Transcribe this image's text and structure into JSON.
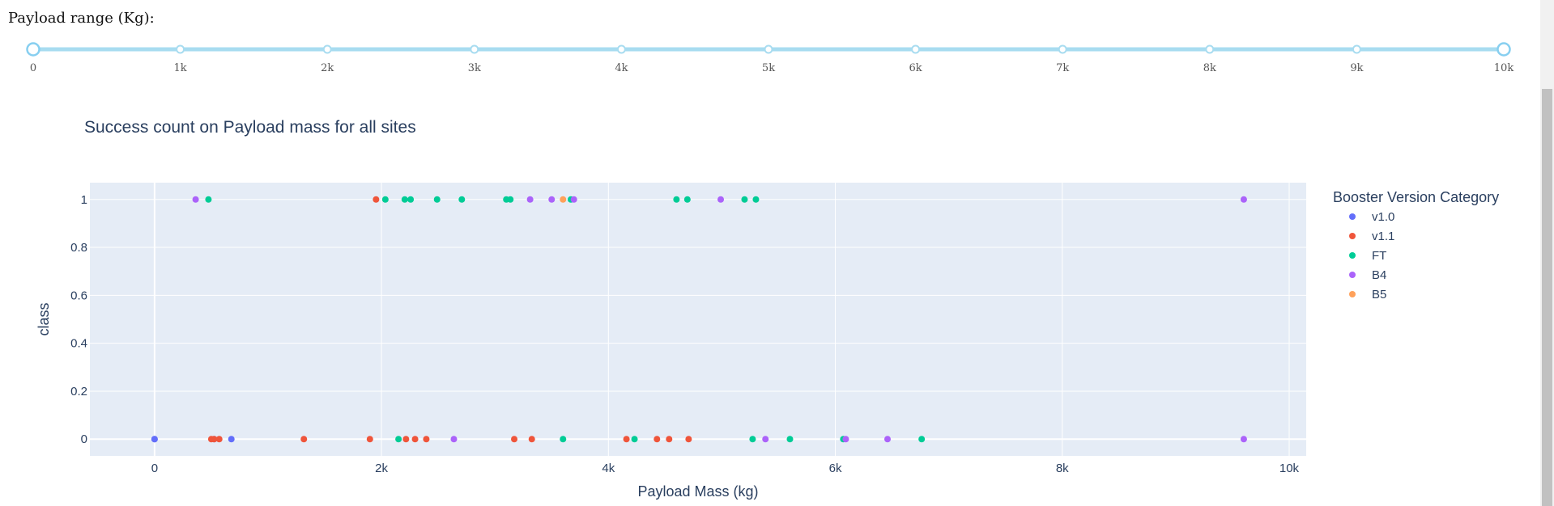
{
  "slider": {
    "label": "Payload range (Kg):",
    "min": 0,
    "max": 10000,
    "value": [
      0,
      10000
    ],
    "marks": [
      "0",
      "1k",
      "2k",
      "3k",
      "4k",
      "5k",
      "6k",
      "7k",
      "8k",
      "9k",
      "10k"
    ],
    "track_color": "#a8dcf0",
    "handle_color": "#87cff0"
  },
  "chart_data": {
    "type": "scatter",
    "title": "Success count on Payload mass for all sites",
    "xlabel": "Payload Mass (kg)",
    "ylabel": "class",
    "xlim": [
      -570,
      10150
    ],
    "ylim": [
      -0.07,
      1.07
    ],
    "x_ticks": [
      0,
      2000,
      4000,
      6000,
      8000,
      10000
    ],
    "x_tick_labels": [
      "0",
      "2k",
      "4k",
      "6k",
      "8k",
      "10k"
    ],
    "y_ticks": [
      0,
      0.2,
      0.4,
      0.6,
      0.8,
      1
    ],
    "y_tick_labels": [
      "0",
      "0.2",
      "0.4",
      "0.6",
      "0.8",
      "1"
    ],
    "grid": true,
    "plot_bg": "#e5ecf6",
    "legend_title": "Booster Version Category",
    "legend_position": "right",
    "series": [
      {
        "name": "v1.0",
        "color": "#636efa",
        "points": [
          [
            0,
            0
          ],
          [
            0,
            0
          ],
          [
            525,
            0
          ],
          [
            677,
            0
          ]
        ]
      },
      {
        "name": "v1.1",
        "color": "#ef553b",
        "points": [
          [
            500,
            0
          ],
          [
            525,
            0
          ],
          [
            570,
            0
          ],
          [
            1316,
            0
          ],
          [
            1898,
            0
          ],
          [
            1952,
            1
          ],
          [
            2216,
            0
          ],
          [
            2296,
            0
          ],
          [
            2395,
            0
          ],
          [
            3170,
            0
          ],
          [
            3325,
            0
          ],
          [
            4159,
            0
          ],
          [
            4428,
            0
          ],
          [
            4535,
            0
          ],
          [
            4707,
            0
          ]
        ]
      },
      {
        "name": "FT",
        "color": "#00cc96",
        "points": [
          [
            475,
            1
          ],
          [
            2034,
            1
          ],
          [
            2150,
            0
          ],
          [
            2205,
            1
          ],
          [
            2257,
            1
          ],
          [
            2490,
            1
          ],
          [
            2708,
            1
          ],
          [
            3100,
            1
          ],
          [
            3136,
            1
          ],
          [
            3600,
            0
          ],
          [
            3669,
            1
          ],
          [
            4230,
            0
          ],
          [
            4600,
            1
          ],
          [
            4696,
            1
          ],
          [
            5200,
            1
          ],
          [
            5271,
            0
          ],
          [
            5300,
            1
          ],
          [
            5600,
            0
          ],
          [
            6070,
            0
          ],
          [
            6761,
            0
          ]
        ]
      },
      {
        "name": "B4",
        "color": "#ab63fa",
        "points": [
          [
            362,
            1
          ],
          [
            2638,
            0
          ],
          [
            3310,
            1
          ],
          [
            3500,
            1
          ],
          [
            3696,
            1
          ],
          [
            4990,
            1
          ],
          [
            5384,
            0
          ],
          [
            6092,
            0
          ],
          [
            6460,
            0
          ],
          [
            9600,
            0
          ],
          [
            9600,
            1
          ]
        ]
      },
      {
        "name": "B5",
        "color": "#ffa15a",
        "points": [
          [
            3600,
            1
          ]
        ]
      }
    ]
  }
}
